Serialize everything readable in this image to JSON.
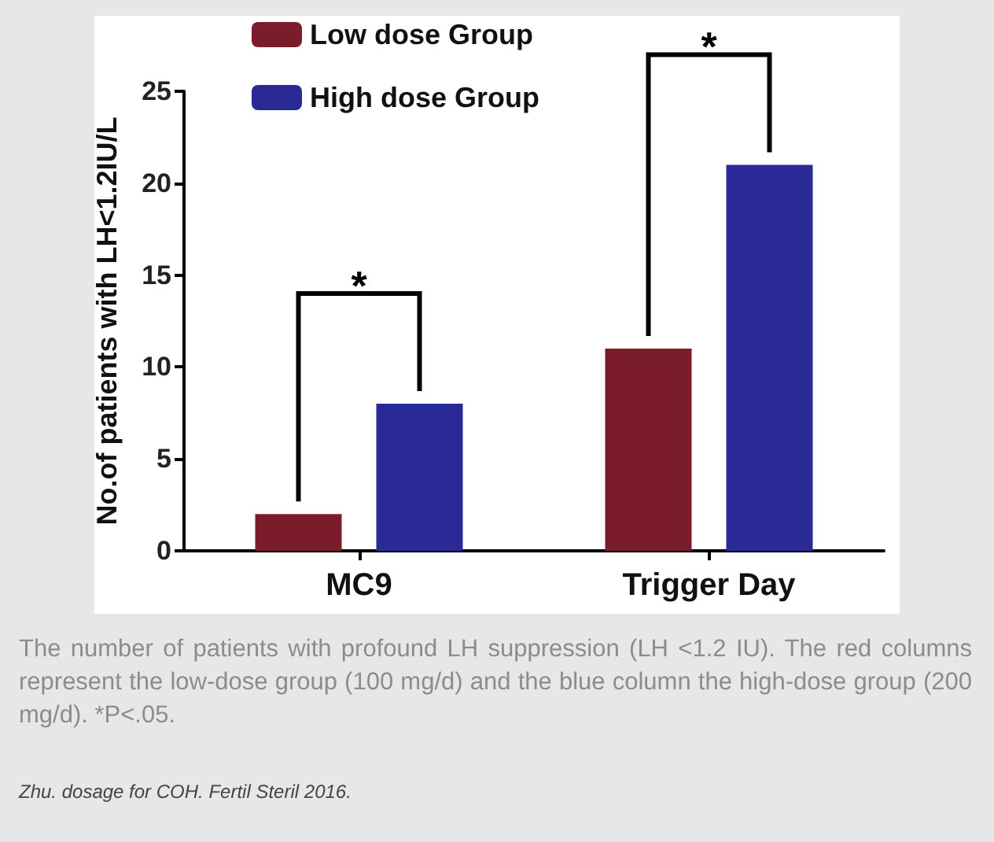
{
  "chart_data": {
    "type": "bar",
    "ylabel": "No.of patients with LH<1.2IU/L",
    "categories": [
      "MC9",
      "Trigger Day"
    ],
    "series": [
      {
        "name": "Low dose Group",
        "color": "#7b1c2a",
        "values": [
          2,
          11
        ]
      },
      {
        "name": "High dose Group",
        "color": "#2a2a96",
        "values": [
          8,
          21
        ]
      }
    ],
    "ylim": [
      0,
      25
    ],
    "yticks": [
      0,
      5,
      10,
      15,
      20,
      25
    ],
    "grid": false,
    "legend": "top left",
    "annotations": [
      "*",
      "*",
      "The number of patients with profound LH suppression (LH <1.2 IU). The red columns represent the low-dose group (100 mg/d) and the blue column the high-dose group (200 mg/d). *P<.05.",
      "Zhu. dosage for COH. Fertil Steril 2016."
    ]
  }
}
